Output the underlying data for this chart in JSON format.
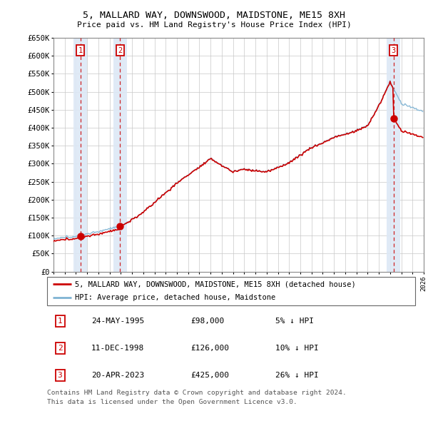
{
  "title": "5, MALLARD WAY, DOWNSWOOD, MAIDSTONE, ME15 8XH",
  "subtitle": "Price paid vs. HM Land Registry's House Price Index (HPI)",
  "ylabel_ticks": [
    "£0",
    "£50K",
    "£100K",
    "£150K",
    "£200K",
    "£250K",
    "£300K",
    "£350K",
    "£400K",
    "£450K",
    "£500K",
    "£550K",
    "£600K",
    "£650K"
  ],
  "ytick_values": [
    0,
    50000,
    100000,
    150000,
    200000,
    250000,
    300000,
    350000,
    400000,
    450000,
    500000,
    550000,
    600000,
    650000
  ],
  "xmin": 1993.0,
  "xmax": 2026.0,
  "ymin": 0,
  "ymax": 650000,
  "sale_dates": [
    1995.388,
    1998.942,
    2023.302
  ],
  "sale_prices": [
    98000,
    126000,
    425000
  ],
  "sale_labels": [
    "1",
    "2",
    "3"
  ],
  "legend_sale": "5, MALLARD WAY, DOWNSWOOD, MAIDSTONE, ME15 8XH (detached house)",
  "legend_hpi": "HPI: Average price, detached house, Maidstone",
  "table_data": [
    {
      "label": "1",
      "date": "24-MAY-1995",
      "price": "£98,000",
      "pct": "5% ↓ HPI"
    },
    {
      "label": "2",
      "date": "11-DEC-1998",
      "price": "£126,000",
      "pct": "10% ↓ HPI"
    },
    {
      "label": "3",
      "date": "20-APR-2023",
      "price": "£425,000",
      "pct": "26% ↓ HPI"
    }
  ],
  "footnote1": "Contains HM Land Registry data © Crown copyright and database right 2024.",
  "footnote2": "This data is licensed under the Open Government Licence v3.0.",
  "sale_color": "#cc0000",
  "hpi_color": "#7fb3d3",
  "shading_color": "#dde8f5",
  "grid_color": "#c8c8c8"
}
